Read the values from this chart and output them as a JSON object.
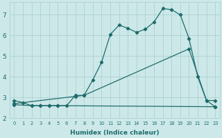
{
  "xlabel": "Humidex (Indice chaleur)",
  "bg_color": "#cce8e8",
  "line_color": "#1e6b6b",
  "grid_color": "#aacccc",
  "xlim": [
    -0.5,
    23.5
  ],
  "ylim": [
    2.2,
    7.6
  ],
  "yticks": [
    2,
    3,
    4,
    5,
    6,
    7
  ],
  "xticks": [
    0,
    1,
    2,
    3,
    4,
    5,
    6,
    7,
    8,
    9,
    10,
    11,
    12,
    13,
    14,
    15,
    16,
    17,
    18,
    19,
    20,
    21,
    22,
    23
  ],
  "line1_x": [
    0,
    1,
    2,
    3,
    4,
    5,
    6,
    7,
    8,
    9,
    10,
    11,
    12,
    13,
    14,
    15,
    16,
    17,
    18,
    19,
    20,
    21,
    22,
    23
  ],
  "line1_y": [
    2.85,
    2.75,
    2.6,
    2.6,
    2.6,
    2.6,
    2.6,
    3.1,
    3.1,
    3.85,
    4.7,
    6.05,
    6.5,
    6.35,
    6.15,
    6.3,
    6.65,
    7.3,
    7.25,
    7.0,
    5.85,
    4.0,
    2.85,
    2.55
  ],
  "line2_x": [
    0,
    2,
    3,
    4,
    5,
    23
  ],
  "line2_y": [
    2.65,
    2.6,
    2.6,
    2.6,
    2.6,
    2.55
  ],
  "line3_x": [
    0,
    7,
    8,
    20,
    22,
    23
  ],
  "line3_y": [
    2.7,
    3.05,
    3.1,
    5.35,
    2.85,
    2.85
  ]
}
